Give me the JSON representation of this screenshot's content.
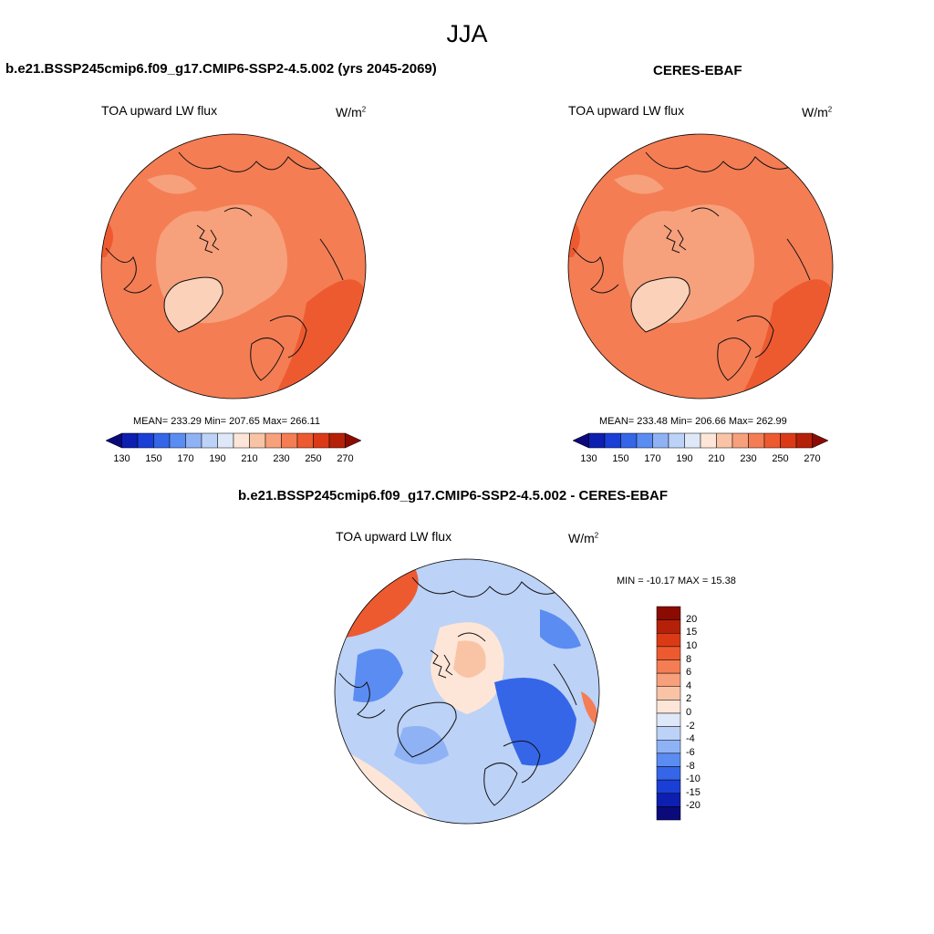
{
  "season": "JJA",
  "panels": [
    {
      "title": "b.e21.BSSP245cmip6.f09_g17.CMIP6-SSP2-4.5.002 (yrs 2045-2069)",
      "variable": "TOA upward LW flux",
      "units_base": "W/m",
      "units_exp": "2",
      "stats": "MEAN= 233.29  Min= 207.65  Max= 266.11"
    },
    {
      "title": "CERES-EBAF",
      "variable": "TOA upward LW flux",
      "units_base": "W/m",
      "units_exp": "2",
      "stats": "MEAN= 233.48  Min= 206.66  Max= 262.99"
    },
    {
      "title": "b.e21.BSSP245cmip6.f09_g17.CMIP6-SSP2-4.5.002 - CERES-EBAF",
      "variable": "TOA upward LW flux",
      "units_base": "W/m",
      "units_exp": "2",
      "stats": "MIN = -10.17 MAX =  15.38"
    }
  ],
  "chart_data": [
    {
      "type": "heatmap",
      "projection": "north polar stereographic",
      "title": "b.e21.BSSP245cmip6.f09_g17.CMIP6-SSP2-4.5.002 (yrs 2045-2069)",
      "variable": "TOA upward LW flux",
      "units": "W/m2",
      "mean": 233.29,
      "min": 207.65,
      "max": 266.11,
      "colorbar_ticks": [
        "130",
        "150",
        "170",
        "190",
        "210",
        "230",
        "250",
        "270"
      ],
      "colorbar_colors": [
        "#0a0a7a",
        "#0c1fb0",
        "#1a3fd6",
        "#3566e8",
        "#5b8cf2",
        "#8fb2f5",
        "#bcd2f7",
        "#dfe8f8",
        "#fde6d8",
        "#f9c4a6",
        "#f7a07c",
        "#f47d54",
        "#ee5a30",
        "#dc3a17",
        "#b52108",
        "#8b0b02"
      ],
      "map_colors": {
        "ocean": "#f47d54",
        "arctic": "#f7a07c",
        "greenland": "#fbd2b9",
        "warm": "#ee5a30"
      }
    },
    {
      "type": "heatmap",
      "projection": "north polar stereographic",
      "title": "CERES-EBAF",
      "variable": "TOA upward LW flux",
      "units": "W/m2",
      "mean": 233.48,
      "min": 206.66,
      "max": 262.99,
      "colorbar_ticks": [
        "130",
        "150",
        "170",
        "190",
        "210",
        "230",
        "250",
        "270"
      ],
      "colorbar_colors": [
        "#0a0a7a",
        "#0c1fb0",
        "#1a3fd6",
        "#3566e8",
        "#5b8cf2",
        "#8fb2f5",
        "#bcd2f7",
        "#dfe8f8",
        "#fde6d8",
        "#f9c4a6",
        "#f7a07c",
        "#f47d54",
        "#ee5a30",
        "#dc3a17",
        "#b52108",
        "#8b0b02"
      ],
      "map_colors": {
        "ocean": "#f47d54",
        "arctic": "#f7a07c",
        "greenland": "#fbd2b9",
        "warm": "#ee5a30"
      }
    },
    {
      "type": "heatmap",
      "projection": "north polar stereographic",
      "title": "b.e21.BSSP245cmip6.f09_g17.CMIP6-SSP2-4.5.002 - CERES-EBAF",
      "variable": "TOA upward LW flux",
      "units": "W/m2",
      "min": -10.17,
      "max": 15.38,
      "colorbar_ticks": [
        "20",
        "15",
        "10",
        "8",
        "6",
        "4",
        "2",
        "0",
        "-2",
        "-4",
        "-6",
        "-8",
        "-10",
        "-15",
        "-20"
      ],
      "colorbar_colors": [
        "#8b0b02",
        "#b52108",
        "#dc3a17",
        "#ee5a30",
        "#f47d54",
        "#f7a07c",
        "#f9c4a6",
        "#fde6d8",
        "#dfe8f8",
        "#bcd2f7",
        "#8fb2f5",
        "#5b8cf2",
        "#3566e8",
        "#1a3fd6",
        "#0c1fb0",
        "#0a0a7a"
      ]
    }
  ]
}
